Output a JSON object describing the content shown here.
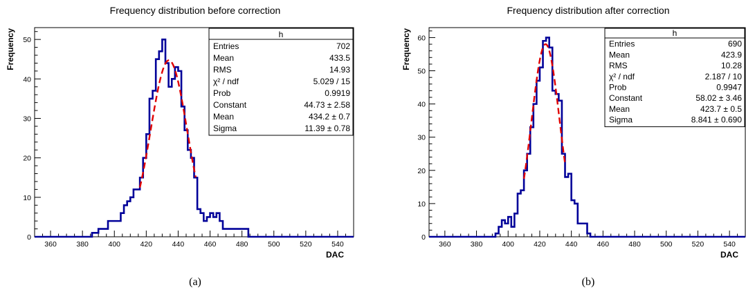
{
  "chart_data": [
    {
      "type": "bar",
      "title": "Frequency distribution before correction",
      "xlabel": "DAC",
      "ylabel": "Frequency",
      "caption": "(a)",
      "xlim": [
        350,
        550
      ],
      "ylim": [
        0,
        53
      ],
      "xticks": [
        360,
        380,
        400,
        420,
        440,
        460,
        480,
        500,
        520,
        540
      ],
      "yticks": [
        0,
        10,
        20,
        30,
        40,
        50
      ],
      "bin_width": 2,
      "bins": [
        [
          386,
          388,
          1
        ],
        [
          388,
          390,
          1
        ],
        [
          390,
          392,
          2
        ],
        [
          392,
          394,
          2
        ],
        [
          394,
          396,
          2
        ],
        [
          396,
          398,
          4
        ],
        [
          398,
          400,
          4
        ],
        [
          400,
          402,
          4
        ],
        [
          402,
          404,
          4
        ],
        [
          404,
          406,
          6
        ],
        [
          406,
          408,
          8
        ],
        [
          408,
          410,
          9
        ],
        [
          410,
          412,
          10
        ],
        [
          412,
          414,
          12
        ],
        [
          414,
          416,
          12
        ],
        [
          416,
          418,
          15
        ],
        [
          418,
          420,
          20
        ],
        [
          420,
          422,
          26
        ],
        [
          422,
          424,
          35
        ],
        [
          424,
          426,
          37
        ],
        [
          426,
          428,
          45
        ],
        [
          428,
          430,
          47
        ],
        [
          430,
          432,
          50
        ],
        [
          432,
          434,
          44
        ],
        [
          434,
          436,
          38
        ],
        [
          436,
          438,
          40
        ],
        [
          438,
          440,
          43
        ],
        [
          440,
          442,
          42
        ],
        [
          442,
          444,
          33
        ],
        [
          444,
          446,
          27
        ],
        [
          446,
          448,
          22
        ],
        [
          448,
          450,
          20
        ],
        [
          450,
          452,
          15
        ],
        [
          452,
          454,
          7
        ],
        [
          454,
          456,
          6
        ],
        [
          456,
          458,
          4
        ],
        [
          458,
          460,
          5
        ],
        [
          460,
          462,
          6
        ],
        [
          462,
          464,
          5
        ],
        [
          464,
          466,
          6
        ],
        [
          466,
          468,
          4
        ],
        [
          468,
          470,
          2
        ],
        [
          470,
          484,
          2
        ],
        [
          484,
          486,
          0
        ]
      ],
      "fit": {
        "type": "gaus",
        "constant": 44.73,
        "mean": 434.2,
        "sigma": 11.39,
        "range": [
          416,
          451
        ]
      },
      "stats": {
        "header": "h",
        "rows": [
          {
            "label": "Entries",
            "value": "702"
          },
          {
            "label": "Mean",
            "value": "433.5"
          },
          {
            "label": "RMS",
            "value": "14.93"
          },
          {
            "label": "χ² / ndf",
            "value": "5.029 / 15"
          },
          {
            "label": "Prob",
            "value": "0.9919"
          },
          {
            "label": "Constant",
            "value": "44.73 ± 2.58"
          },
          {
            "label": "Mean",
            "value": "434.2 ± 0.7"
          },
          {
            "label": "Sigma",
            "value": "11.39 ± 0.78"
          }
        ]
      },
      "colors": {
        "hist": "#000099",
        "fit": "#e00000"
      }
    },
    {
      "type": "bar",
      "title": "Frequency distribution after correction",
      "xlabel": "DAC",
      "ylabel": "Frequency",
      "caption": "(b)",
      "xlim": [
        350,
        550
      ],
      "ylim": [
        0,
        63
      ],
      "xticks": [
        360,
        380,
        400,
        420,
        440,
        460,
        480,
        500,
        520,
        540
      ],
      "yticks": [
        0,
        10,
        20,
        30,
        40,
        50,
        60
      ],
      "bin_width": 2,
      "bins": [
        [
          392,
          394,
          1
        ],
        [
          394,
          396,
          3
        ],
        [
          396,
          398,
          5
        ],
        [
          398,
          400,
          4
        ],
        [
          400,
          402,
          6
        ],
        [
          402,
          404,
          3
        ],
        [
          404,
          406,
          7
        ],
        [
          406,
          408,
          13
        ],
        [
          408,
          410,
          14
        ],
        [
          410,
          412,
          20
        ],
        [
          412,
          414,
          25
        ],
        [
          414,
          416,
          33
        ],
        [
          416,
          418,
          40
        ],
        [
          418,
          420,
          47
        ],
        [
          420,
          422,
          51
        ],
        [
          422,
          424,
          59
        ],
        [
          424,
          426,
          60
        ],
        [
          426,
          428,
          57
        ],
        [
          428,
          430,
          44
        ],
        [
          430,
          432,
          43
        ],
        [
          432,
          434,
          41
        ],
        [
          434,
          436,
          25
        ],
        [
          436,
          438,
          18
        ],
        [
          438,
          440,
          19
        ],
        [
          440,
          442,
          11
        ],
        [
          442,
          444,
          10
        ],
        [
          444,
          446,
          4
        ],
        [
          446,
          448,
          4
        ],
        [
          448,
          450,
          4
        ],
        [
          450,
          452,
          1
        ],
        [
          452,
          454,
          0
        ]
      ],
      "fit": {
        "type": "gaus",
        "constant": 58.02,
        "mean": 423.7,
        "sigma": 8.841,
        "range": [
          410,
          436
        ]
      },
      "stats": {
        "header": "h",
        "rows": [
          {
            "label": "Entries",
            "value": "690"
          },
          {
            "label": "Mean",
            "value": "423.9"
          },
          {
            "label": "RMS",
            "value": "10.28"
          },
          {
            "label": "χ² / ndf",
            "value": "2.187 / 10"
          },
          {
            "label": "Prob",
            "value": "0.9947"
          },
          {
            "label": "Constant",
            "value": "58.02 ± 3.46"
          },
          {
            "label": "Mean",
            "value": "423.7 ± 0.5"
          },
          {
            "label": "Sigma",
            "value": "8.841 ± 0.690"
          }
        ]
      },
      "colors": {
        "hist": "#000099",
        "fit": "#e00000"
      }
    }
  ]
}
